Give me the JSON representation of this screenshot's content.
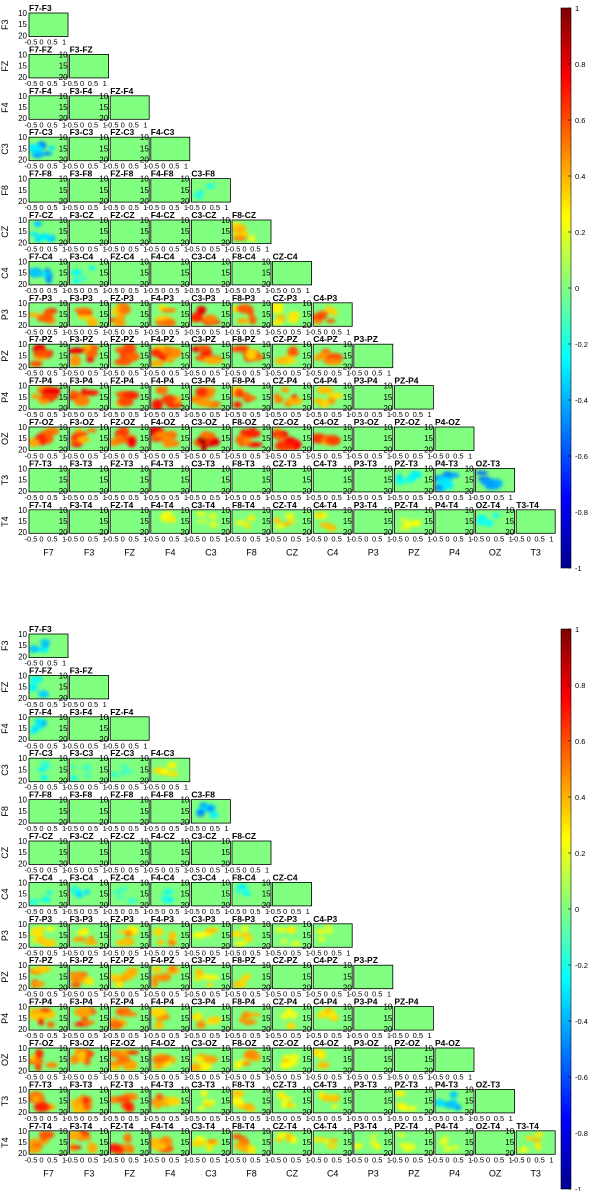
{
  "chart_data": [
    {
      "type": "heatmap",
      "layout": "lower-triangle-matrix",
      "channels": [
        "F7",
        "F3",
        "FZ",
        "F4",
        "C3",
        "F8",
        "CZ",
        "C4",
        "P3",
        "PZ",
        "P4",
        "OZ",
        "T3",
        "T4"
      ],
      "row_labels": [
        "F3",
        "FZ",
        "F4",
        "C3",
        "F8",
        "CZ",
        "C4",
        "P3",
        "PZ",
        "P4",
        "OZ",
        "T3",
        "T4"
      ],
      "column_labels": [
        "F7",
        "F3",
        "FZ",
        "F4",
        "C3",
        "F8",
        "CZ",
        "C4",
        "P3",
        "PZ",
        "P4",
        "OZ",
        "T3"
      ],
      "cell_ytick_labels": [
        "10",
        "15",
        "20"
      ],
      "cell_xtick_labels": [
        "-0.5",
        "0",
        "0.5",
        "1"
      ],
      "colorbar": {
        "ticks": [
          "1",
          "0.8",
          "0.6",
          "0.4",
          "0.2",
          "0",
          "-0.2",
          "-0.4",
          "-0.6",
          "-0.8",
          "-1"
        ],
        "min": -1,
        "max": 1
      },
      "highlights": [
        {
          "pair": "F7-C3",
          "value": -0.5
        },
        {
          "pair": "F7-CZ",
          "value": -0.4
        },
        {
          "pair": "F7-C4",
          "value": -0.6
        },
        {
          "pair": "F3-C4",
          "value": -0.3
        },
        {
          "pair": "C3-F8",
          "value": -0.2
        },
        {
          "pair": "F8-CZ",
          "value": 0.5
        },
        {
          "pair": "F7-P3",
          "value": 0.7
        },
        {
          "pair": "F3-P3",
          "value": 0.7
        },
        {
          "pair": "FZ-P3",
          "value": 0.7
        },
        {
          "pair": "F4-P3",
          "value": 0.6
        },
        {
          "pair": "C3-P3",
          "value": 0.8
        },
        {
          "pair": "F8-P3",
          "value": 0.6
        },
        {
          "pair": "CZ-P3",
          "value": 0.5
        },
        {
          "pair": "C4-P3",
          "value": 0.6
        },
        {
          "pair": "F7-PZ",
          "value": 0.8
        },
        {
          "pair": "F3-PZ",
          "value": 0.8
        },
        {
          "pair": "FZ-PZ",
          "value": 0.8
        },
        {
          "pair": "F4-PZ",
          "value": 0.7
        },
        {
          "pair": "C3-PZ",
          "value": 0.8
        },
        {
          "pair": "F8-PZ",
          "value": 0.7
        },
        {
          "pair": "CZ-PZ",
          "value": 0.6
        },
        {
          "pair": "C4-PZ",
          "value": 0.6
        },
        {
          "pair": "F7-P4",
          "value": 0.8
        },
        {
          "pair": "F3-P4",
          "value": 0.8
        },
        {
          "pair": "FZ-P4",
          "value": 0.7
        },
        {
          "pair": "F4-P4",
          "value": 0.8
        },
        {
          "pair": "C3-P4",
          "value": 0.8
        },
        {
          "pair": "F8-P4",
          "value": 0.7
        },
        {
          "pair": "CZ-P4",
          "value": 0.7
        },
        {
          "pair": "C4-P4",
          "value": 0.6
        },
        {
          "pair": "F7-OZ",
          "value": 0.8
        },
        {
          "pair": "F3-OZ",
          "value": 0.8
        },
        {
          "pair": "FZ-OZ",
          "value": 0.8
        },
        {
          "pair": "F4-OZ",
          "value": 0.8
        },
        {
          "pair": "C3-OZ",
          "value": 0.9
        },
        {
          "pair": "F8-OZ",
          "value": 0.8
        },
        {
          "pair": "CZ-OZ",
          "value": 0.8
        },
        {
          "pair": "C4-OZ",
          "value": 0.7
        },
        {
          "pair": "PZ-T3",
          "value": -0.4
        },
        {
          "pair": "P4-T3",
          "value": -0.5
        },
        {
          "pair": "OZ-T3",
          "value": -0.6
        },
        {
          "pair": "F4-T4",
          "value": 0.3
        },
        {
          "pair": "C3-T4",
          "value": 0.3
        },
        {
          "pair": "F8-T4",
          "value": 0.3
        },
        {
          "pair": "CZ-T4",
          "value": 0.4
        },
        {
          "pair": "C4-T4",
          "value": 0.4
        },
        {
          "pair": "PZ-T4",
          "value": 0.3
        },
        {
          "pair": "OZ-T4",
          "value": -0.3
        }
      ]
    },
    {
      "type": "heatmap",
      "layout": "lower-triangle-matrix",
      "channels": [
        "F7",
        "F3",
        "FZ",
        "F4",
        "C3",
        "F8",
        "CZ",
        "C4",
        "P3",
        "PZ",
        "P4",
        "OZ",
        "T3",
        "T4"
      ],
      "row_labels": [
        "F3",
        "FZ",
        "F4",
        "C3",
        "F8",
        "CZ",
        "C4",
        "P3",
        "PZ",
        "P4",
        "OZ",
        "T3",
        "T4"
      ],
      "column_labels": [
        "F7",
        "F3",
        "FZ",
        "F4",
        "C3",
        "F8",
        "CZ",
        "C4",
        "P3",
        "PZ",
        "P4",
        "OZ",
        "T3"
      ],
      "cell_ytick_labels": [
        "10",
        "15",
        "20"
      ],
      "cell_xtick_labels": [
        "-0.5",
        "0",
        "0.5",
        "1"
      ],
      "colorbar": {
        "ticks": [
          "1",
          "0.8",
          "0.6",
          "0.4",
          "0.2",
          "0",
          "-0.2",
          "-0.4",
          "-0.6",
          "-0.8",
          "-1"
        ],
        "min": -1,
        "max": 1
      },
      "highlights": [
        {
          "pair": "F7-F3",
          "value": -0.4
        },
        {
          "pair": "F7-FZ",
          "value": -0.4
        },
        {
          "pair": "F7-F4",
          "value": -0.4
        },
        {
          "pair": "F7-C3",
          "value": -0.3
        },
        {
          "pair": "F3-C3",
          "value": -0.2
        },
        {
          "pair": "FZ-C3",
          "value": -0.2
        },
        {
          "pair": "F4-C3",
          "value": 0.4
        },
        {
          "pair": "C3-F8",
          "value": -0.5
        },
        {
          "pair": "F7-C4",
          "value": -0.3
        },
        {
          "pair": "F3-C4",
          "value": -0.3
        },
        {
          "pair": "FZ-C4",
          "value": -0.2
        },
        {
          "pair": "F4-C4",
          "value": -0.3
        },
        {
          "pair": "F8-C4",
          "value": -0.3
        },
        {
          "pair": "F7-P3",
          "value": 0.5
        },
        {
          "pair": "F3-P3",
          "value": 0.5
        },
        {
          "pair": "FZ-P3",
          "value": 0.5
        },
        {
          "pair": "F4-P3",
          "value": 0.5
        },
        {
          "pair": "C3-P3",
          "value": 0.4
        },
        {
          "pair": "F8-P3",
          "value": 0.4
        },
        {
          "pair": "CZ-P3",
          "value": 0.3
        },
        {
          "pair": "C4-P3",
          "value": 0.3
        },
        {
          "pair": "F7-PZ",
          "value": 0.6
        },
        {
          "pair": "F3-PZ",
          "value": 0.6
        },
        {
          "pair": "FZ-PZ",
          "value": 0.5
        },
        {
          "pair": "F4-PZ",
          "value": 0.5
        },
        {
          "pair": "C3-PZ",
          "value": 0.4
        },
        {
          "pair": "F8-PZ",
          "value": 0.4
        },
        {
          "pair": "F7-P4",
          "value": 0.7
        },
        {
          "pair": "F3-P4",
          "value": 0.7
        },
        {
          "pair": "FZ-P4",
          "value": 0.6
        },
        {
          "pair": "F4-P4",
          "value": 0.6
        },
        {
          "pair": "C3-P4",
          "value": 0.5
        },
        {
          "pair": "F8-P4",
          "value": 0.5
        },
        {
          "pair": "CZ-P4",
          "value": 0.4
        },
        {
          "pair": "C4-P4",
          "value": 0.4
        },
        {
          "pair": "F7-OZ",
          "value": 0.7
        },
        {
          "pair": "F3-OZ",
          "value": 0.7
        },
        {
          "pair": "FZ-OZ",
          "value": 0.7
        },
        {
          "pair": "F4-OZ",
          "value": 0.6
        },
        {
          "pair": "C3-OZ",
          "value": 0.5
        },
        {
          "pair": "F8-OZ",
          "value": 0.5
        },
        {
          "pair": "CZ-OZ",
          "value": 0.4
        },
        {
          "pair": "C4-OZ",
          "value": 0.4
        },
        {
          "pair": "F7-T3",
          "value": 0.7
        },
        {
          "pair": "F3-T3",
          "value": 0.7
        },
        {
          "pair": "FZ-T3",
          "value": 0.7
        },
        {
          "pair": "F4-T3",
          "value": 0.6
        },
        {
          "pair": "C3-T3",
          "value": 0.4
        },
        {
          "pair": "F8-T3",
          "value": 0.5
        },
        {
          "pair": "CZ-T3",
          "value": 0.4
        },
        {
          "pair": "C4-T3",
          "value": 0.4
        },
        {
          "pair": "PZ-T3",
          "value": 0.3
        },
        {
          "pair": "P4-T3",
          "value": -0.4
        },
        {
          "pair": "F7-T4",
          "value": 0.7
        },
        {
          "pair": "F3-T4",
          "value": 0.7
        },
        {
          "pair": "FZ-T4",
          "value": 0.7
        },
        {
          "pair": "F4-T4",
          "value": 0.7
        },
        {
          "pair": "C3-T4",
          "value": 0.5
        },
        {
          "pair": "F8-T4",
          "value": 0.6
        },
        {
          "pair": "CZ-T4",
          "value": 0.4
        },
        {
          "pair": "C4-T4",
          "value": 0.4
        },
        {
          "pair": "P3-T4",
          "value": 0.3
        },
        {
          "pair": "PZ-T4",
          "value": 0.3
        },
        {
          "pair": "P4-T4",
          "value": 0.3
        },
        {
          "pair": "T3-T4",
          "value": 0.4
        }
      ]
    }
  ]
}
